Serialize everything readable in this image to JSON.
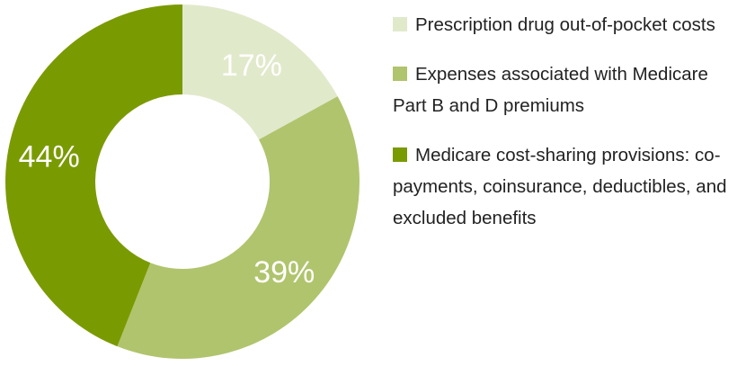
{
  "chart_data": {
    "type": "pie",
    "variant": "donut",
    "categories": [
      "Prescription drug out-of-pocket costs",
      "Expenses associated with Medicare Part B and D premiums",
      "Medicare cost-sharing provisions: co-payments, coinsurance, deductibles, and excluded benefits"
    ],
    "values": [
      17,
      39,
      44
    ],
    "data_labels": [
      "17%",
      "39%",
      "44%"
    ],
    "colors": [
      "#e1e9cb",
      "#b0c46d",
      "#7a9a01"
    ],
    "legend_position": "right",
    "title": ""
  }
}
